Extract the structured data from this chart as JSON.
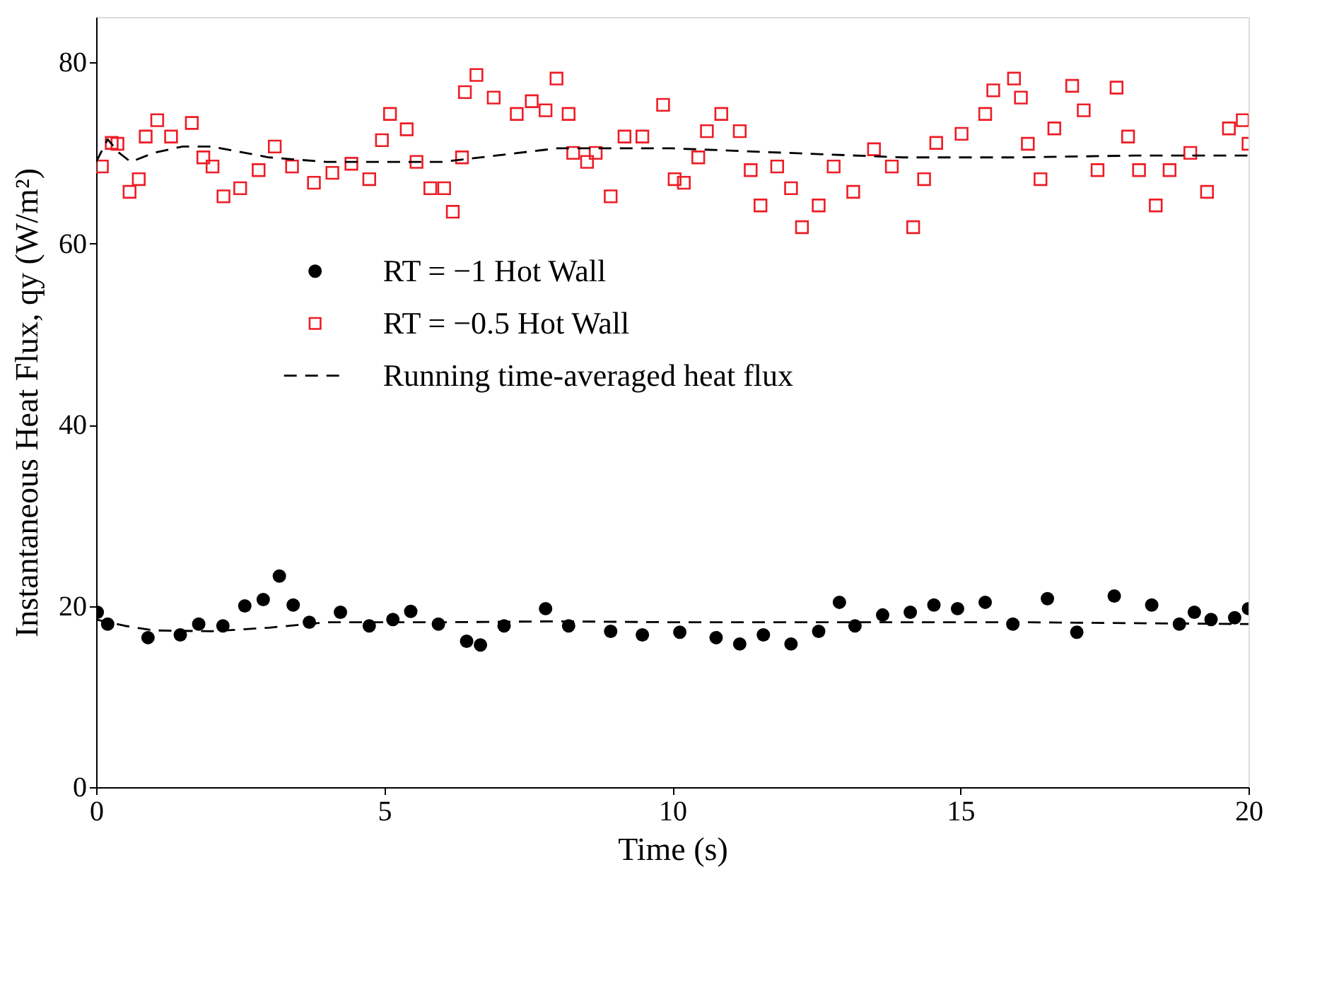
{
  "chart_data": {
    "type": "scatter",
    "xlabel": "Time (s)",
    "ylabel": "Instantaneous Heat Flux, qy (W/m²)",
    "xlim": [
      0,
      20
    ],
    "ylim": [
      0,
      85
    ],
    "xticks": [
      0,
      5,
      10,
      15,
      20
    ],
    "yticks": [
      0,
      20,
      40,
      60,
      80
    ],
    "grid": false,
    "legend": "center",
    "series": [
      {
        "name": "RT = −1 Hot Wall",
        "marker": "circle",
        "color": "#000000",
        "x": [
          0.02,
          0.2,
          0.9,
          1.46,
          1.78,
          2.2,
          2.58,
          2.9,
          3.18,
          3.42,
          3.7,
          4.24,
          4.74,
          5.15,
          5.46,
          5.94,
          6.43,
          6.67,
          7.08,
          7.8,
          8.2,
          8.93,
          9.48,
          10.13,
          10.76,
          11.17,
          11.58,
          12.06,
          12.54,
          12.9,
          13.17,
          13.65,
          14.13,
          14.54,
          14.95,
          15.43,
          15.91,
          16.51,
          17.02,
          17.67,
          18.32,
          18.8,
          19.06,
          19.35,
          19.76,
          20
        ],
        "values": [
          19.3,
          18,
          16.5,
          16.8,
          18,
          17.8,
          20,
          20.7,
          23.3,
          20.1,
          18.2,
          19.3,
          17.8,
          18.5,
          19.4,
          18,
          16.1,
          15.7,
          17.8,
          19.7,
          17.8,
          17.2,
          16.8,
          17.1,
          16.5,
          15.8,
          16.8,
          15.8,
          17.2,
          20.4,
          17.8,
          19,
          19.3,
          20.1,
          19.7,
          20.4,
          18,
          20.8,
          17.1,
          21.1,
          20.1,
          18,
          19.3,
          18.5,
          18.7,
          19.7
        ]
      },
      {
        "name": "RT = −0.5 Hot Wall",
        "marker": "square",
        "color": "#ee1c25",
        "x": [
          0.1,
          0.27,
          0.37,
          0.58,
          0.74,
          0.86,
          1.06,
          1.3,
          1.66,
          1.86,
          2.02,
          2.21,
          2.5,
          2.82,
          3.1,
          3.4,
          3.78,
          4.1,
          4.43,
          4.74,
          4.96,
          5.1,
          5.39,
          5.56,
          5.8,
          6.04,
          6.19,
          6.35,
          6.4,
          6.6,
          6.9,
          7.3,
          7.56,
          7.8,
          7.99,
          8.2,
          8.28,
          8.52,
          8.67,
          8.93,
          9.17,
          9.48,
          9.84,
          10.04,
          10.2,
          10.45,
          10.6,
          10.85,
          11.17,
          11.36,
          11.53,
          11.82,
          12.06,
          12.25,
          12.54,
          12.8,
          13.14,
          13.5,
          13.81,
          14.18,
          14.37,
          14.58,
          15.02,
          15.43,
          15.57,
          15.93,
          16.05,
          16.17,
          16.39,
          16.63,
          16.94,
          17.14,
          17.38,
          17.71,
          17.91,
          18.1,
          18.39,
          18.63,
          18.99,
          19.28,
          19.66,
          19.9,
          20
        ],
        "values": [
          68.5,
          71.1,
          71,
          65.7,
          67.1,
          71.8,
          73.6,
          71.8,
          73.3,
          69.5,
          68.5,
          65.2,
          66.1,
          68.1,
          70.7,
          68.5,
          66.7,
          67.8,
          68.8,
          67.1,
          71.4,
          74.3,
          72.6,
          69,
          66.1,
          66.1,
          63.5,
          69.5,
          76.7,
          78.6,
          76.1,
          74.3,
          75.7,
          74.7,
          78.2,
          74.3,
          70,
          69,
          70,
          65.2,
          71.8,
          71.8,
          75.3,
          67.1,
          66.7,
          69.5,
          72.4,
          74.3,
          72.4,
          68.1,
          64.2,
          68.5,
          66.1,
          61.8,
          64.2,
          68.5,
          65.7,
          70.4,
          68.5,
          61.8,
          67.1,
          71.1,
          72.1,
          74.3,
          76.9,
          78.2,
          76.1,
          71,
          67.1,
          72.7,
          77.4,
          74.7,
          68.1,
          77.2,
          71.8,
          68.1,
          64.2,
          68.1,
          70,
          65.7,
          72.7,
          73.6,
          71
        ]
      },
      {
        "name": "Running time-averaged heat flux",
        "type": "line",
        "line_style": "dashed",
        "color": "#000000",
        "x": [
          0,
          0.5,
          1,
          2,
          3,
          4,
          5,
          6,
          8,
          10,
          12,
          14,
          16,
          18,
          20
        ],
        "values": [
          18.5,
          17.8,
          17.3,
          17.2,
          17.6,
          18.2,
          18.2,
          18.2,
          18.3,
          18.2,
          18.2,
          18.2,
          18.2,
          18.1,
          18
        ]
      },
      {
        "type": "line",
        "line_style": "dashed",
        "color": "#000000",
        "x": [
          0,
          0.2,
          0.4,
          0.6,
          1,
          1.5,
          2,
          3,
          4,
          6,
          8,
          10,
          12,
          14,
          16,
          18,
          20
        ],
        "values": [
          69,
          71.5,
          70,
          69,
          70,
          70.7,
          70.7,
          69.5,
          69,
          69,
          70.5,
          70.5,
          70,
          69.5,
          69.5,
          69.7,
          69.7
        ]
      }
    ]
  }
}
